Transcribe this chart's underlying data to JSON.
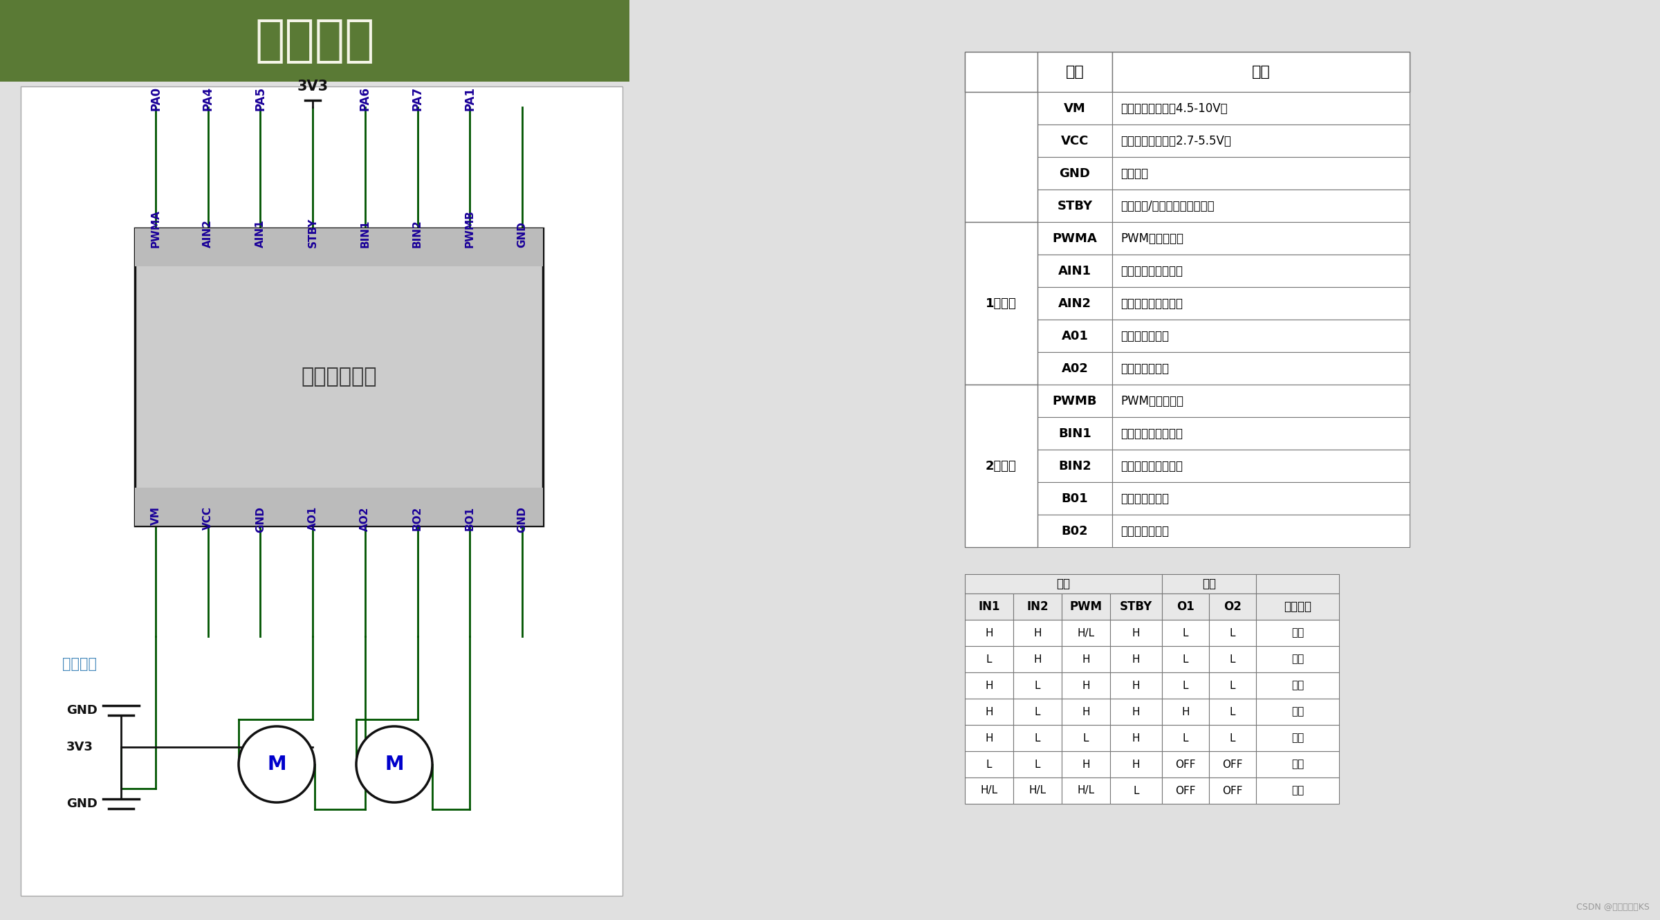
{
  "title": "硬件电路",
  "title_bg_color": "#5a7a35",
  "title_text_color": "#f5f5e8",
  "bg_color": "#e0e0e0",
  "circuit_bg_color": "#ffffff",
  "grid_color": "#c5ccd8",
  "chip_bg_color": "#cccccc",
  "chip_inner_bg": "#bbbbbb",
  "chip_border_color": "#111111",
  "chip_label": "电机驱动模块",
  "chip_label_color": "#333333",
  "pin_color": "#1a0099",
  "wire_color": "#005500",
  "motor_border_color": "#111111",
  "motor_label": "M",
  "motor_text_color": "#0000cc",
  "power_label": "电机电源",
  "power_label_color": "#4488bb",
  "top_chip_pins": [
    "PWMA",
    "AIN2",
    "AIN1",
    "STBY",
    "BIN1",
    "BIN2",
    "PWMB",
    "GND"
  ],
  "top_pa_labels": [
    "PA0",
    "PA4",
    "PA5",
    "",
    "PA6",
    "PA7",
    "PA1",
    ""
  ],
  "bottom_chip_pins": [
    "VM",
    "VCC",
    "GND",
    "AO1",
    "AO2",
    "BO2",
    "BO1",
    "GND"
  ],
  "voltage_label": "3V3",
  "table1_rows": [
    [
      "VM",
      "驱动电压输入端（4.5-10V）"
    ],
    [
      "VCC",
      "逻辑电平输入端（2.7-5.5V）"
    ],
    [
      "GND",
      "电源地端"
    ],
    [
      "STBY",
      "正常工作/待机状态控制输入端"
    ],
    [
      "PWMA",
      "PWM信号输入端"
    ],
    [
      "AIN1",
      "电机控制模式输入端"
    ],
    [
      "AIN2",
      "电机控制模式输入端"
    ],
    [
      "A01",
      "电机驱动输出端"
    ],
    [
      "A02",
      "电机驱动输出端"
    ],
    [
      "PWMB",
      "PWM信号输入端"
    ],
    [
      "BIN1",
      "电机控制模式输入端"
    ],
    [
      "BIN2",
      "电机控制模式输入端"
    ],
    [
      "B01",
      "电机驱动输出端"
    ],
    [
      "B02",
      "电机驱动输出端"
    ]
  ],
  "table2_headers": [
    "IN1",
    "IN2",
    "PWM",
    "STBY",
    "O1",
    "O2",
    "模式状态"
  ],
  "table2_rows": [
    [
      "H",
      "H",
      "H/L",
      "H",
      "L",
      "L",
      "制动"
    ],
    [
      "L",
      "H",
      "H",
      "H",
      "L",
      "L",
      "反转"
    ],
    [
      "H",
      "L",
      "H",
      "H",
      "L",
      "L",
      "制动"
    ],
    [
      "H",
      "L",
      "H",
      "H",
      "H",
      "L",
      "正转"
    ],
    [
      "H",
      "L",
      "L",
      "H",
      "L",
      "L",
      "制动"
    ],
    [
      "L",
      "L",
      "H",
      "H",
      "OFF",
      "OFF",
      "停止"
    ],
    [
      "H/L",
      "H/L",
      "H/L",
      "L",
      "OFF",
      "OFF",
      "待机"
    ]
  ],
  "table_header_bg": "#e8e8e8",
  "table_border_color": "#777777",
  "csdn_text": "CSDN @正在黑化的KS"
}
